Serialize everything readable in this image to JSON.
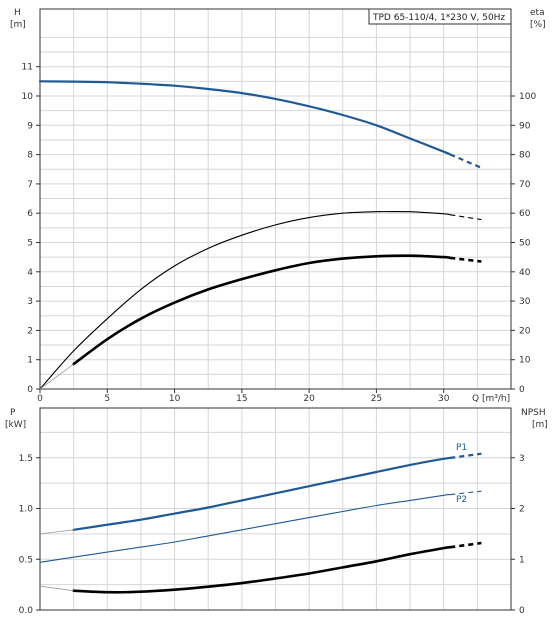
{
  "chart_data": [
    {
      "type": "line",
      "title": "TPD 65-110/4, 1*230 V, 50Hz",
      "xlabel": "Q [m³/h]",
      "ylabel_left": [
        "H",
        "[m]"
      ],
      "ylabel_right": [
        "eta",
        "[%]"
      ],
      "xlim": [
        0,
        35
      ],
      "ylim_left": [
        0,
        12
      ],
      "ylim_right": [
        0,
        120
      ],
      "x_ticks": [
        "0",
        "5",
        "10",
        "15",
        "20",
        "25",
        "30"
      ],
      "y_ticks_left": [
        "0",
        "1",
        "2",
        "3",
        "4",
        "5",
        "6",
        "7",
        "8",
        "9",
        "10",
        "11"
      ],
      "y_ticks_right": [
        "0",
        "10",
        "20",
        "30",
        "40",
        "50",
        "60",
        "70",
        "80",
        "90",
        "100"
      ],
      "grid": true,
      "series": [
        {
          "axis": "left",
          "color": "#1f5a96",
          "width": 2.2,
          "x": [
            0,
            2.5,
            5,
            7.5,
            10,
            12.5,
            15,
            17.5,
            20,
            22.5,
            25,
            27.5,
            30,
            32.8
          ],
          "y": [
            10.5,
            10.49,
            10.47,
            10.42,
            10.35,
            10.24,
            10.1,
            9.9,
            9.65,
            9.35,
            9.0,
            8.55,
            8.1,
            7.55
          ],
          "dashed_from": 30.5
        },
        {
          "axis": "right",
          "color": "#000000",
          "width": 1.1,
          "x": [
            0,
            2.5,
            5,
            7.5,
            10,
            12.5,
            15,
            17.5,
            20,
            22.5,
            25,
            27.5,
            30,
            32.8
          ],
          "y": [
            0,
            13,
            24,
            34,
            42,
            48,
            52.5,
            56,
            58.5,
            60,
            60.5,
            60.5,
            59.8,
            57.8
          ],
          "dashed_from": 30.5
        },
        {
          "axis": "right",
          "color": "#000000",
          "width": 2.6,
          "x": [
            2.5,
            5,
            7.5,
            10,
            12.5,
            15,
            17.5,
            20,
            22.5,
            25,
            27.5,
            30,
            32.8
          ],
          "y": [
            8.5,
            17,
            24,
            29.5,
            34,
            37.5,
            40.5,
            43,
            44.5,
            45.3,
            45.5,
            45,
            43.5
          ],
          "dashed_from": 30.5,
          "faint_start": [
            0,
            0
          ]
        }
      ]
    },
    {
      "type": "line",
      "xlim": [
        0,
        35
      ],
      "ylabel_left": [
        "P",
        "[kW]"
      ],
      "ylabel_right": [
        "NPSH",
        "[m]"
      ],
      "ylim_left": [
        0,
        2
      ],
      "ylim_right": [
        0,
        4
      ],
      "y_ticks_left": [
        "0.0",
        "0.5",
        "1.0",
        "1.5"
      ],
      "y_ticks_right": [
        "0",
        "1",
        "2",
        "3"
      ],
      "grid": true,
      "series": [
        {
          "name": "P1",
          "axis": "left",
          "color": "#1f5a96",
          "width": 2.2,
          "x": [
            0,
            2.5,
            5,
            7.5,
            10,
            12.5,
            15,
            17.5,
            20,
            22.5,
            25,
            27.5,
            30,
            32.8
          ],
          "y": [
            0.75,
            0.79,
            0.84,
            0.89,
            0.95,
            1.01,
            1.08,
            1.15,
            1.22,
            1.29,
            1.36,
            1.43,
            1.49,
            1.54
          ],
          "dashed_from": 30.5,
          "faint_until": 2.5
        },
        {
          "name": "P2",
          "axis": "left",
          "color": "#1f5a96",
          "width": 1.1,
          "x": [
            0,
            2.5,
            5,
            7.5,
            10,
            12.5,
            15,
            17.5,
            20,
            22.5,
            25,
            27.5,
            30,
            32.8
          ],
          "y": [
            0.47,
            0.52,
            0.57,
            0.62,
            0.67,
            0.73,
            0.79,
            0.85,
            0.91,
            0.97,
            1.03,
            1.08,
            1.13,
            1.17
          ],
          "dashed_from": 30.5
        },
        {
          "axis": "right",
          "color": "#000000",
          "width": 2.6,
          "x": [
            0,
            2.5,
            5,
            7.5,
            10,
            12.5,
            15,
            17.5,
            20,
            22.5,
            25,
            27.5,
            30,
            32.8
          ],
          "y": [
            0.47,
            0.38,
            0.35,
            0.36,
            0.4,
            0.46,
            0.53,
            0.62,
            0.72,
            0.84,
            0.96,
            1.1,
            1.22,
            1.32
          ],
          "dashed_from": 30.5,
          "faint_until": 2.5
        }
      ]
    }
  ]
}
